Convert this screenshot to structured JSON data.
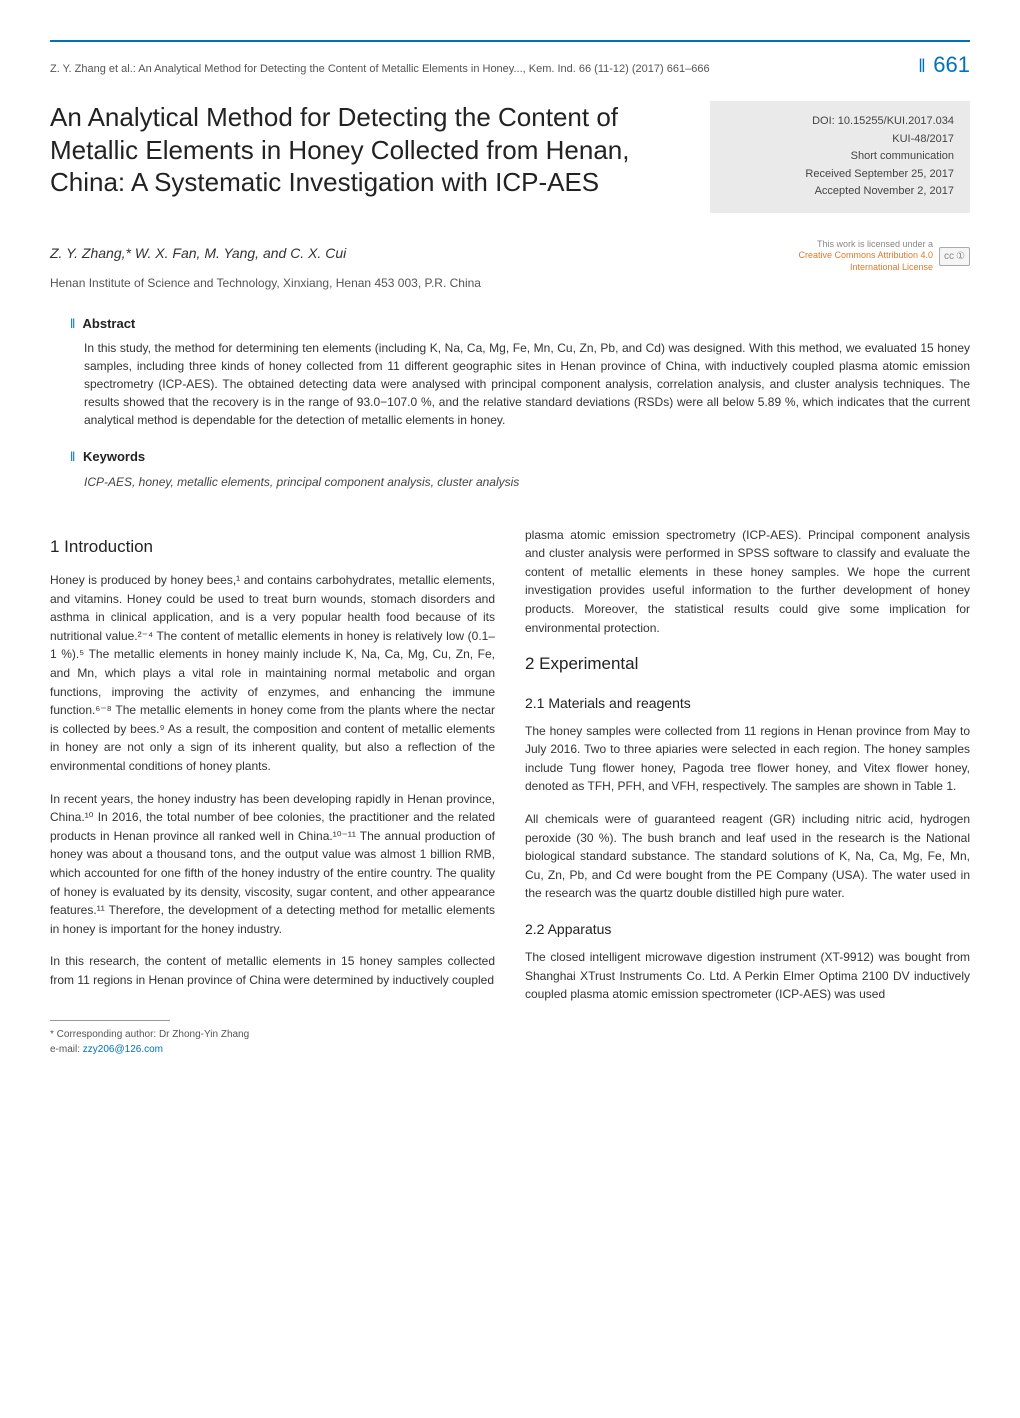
{
  "colors": {
    "accent": "#0072bc",
    "meta_bg": "#eaeaea",
    "text": "#333333",
    "muted": "#555555",
    "license_link": "#d97b2e"
  },
  "header": {
    "running": "Z. Y. Zhang et al.: An Analytical Method for Detecting the Content of Metallic Elements in Honey..., Kem. Ind. 66 (11-12) (2017) 661–666",
    "page_number": "661"
  },
  "title": "An Analytical Method for Detecting the Content of Metallic Elements in Honey Collected from Henan, China: A Systematic Investigation with ICP-AES",
  "metadata": {
    "doi": "DOI: 10.15255/KUI.2017.034",
    "kui": "KUI-48/2017",
    "type": "Short communication",
    "received": "Received September 25, 2017",
    "accepted": "Accepted November 2, 2017"
  },
  "authors_line": "Z. Y. Zhang,* W. X. Fan, M. Yang, and C. X. Cui",
  "license": {
    "text_line1": "This work is licensed under a",
    "text_line2": "Creative Commons Attribution 4.0",
    "text_line3": "International License",
    "badge_cc": "cc",
    "badge_by": "①"
  },
  "affiliation": "Henan Institute of Science and Technology, Xinxiang, Henan 453 003, P.R. China",
  "abstract": {
    "heading": "Abstract",
    "text": "In this study, the method for determining ten elements (including K, Na, Ca, Mg, Fe, Mn, Cu, Zn, Pb, and Cd) was designed. With this method, we evaluated 15 honey samples, including three kinds of honey collected from 11 different geographic sites in Henan province of China, with inductively coupled plasma atomic emission spectrometry (ICP-AES). The obtained detecting data were analysed with principal component analysis, correlation analysis, and cluster analysis techniques. The results showed that the recovery is in the range of 93.0−107.0 %, and the relative standard deviations (RSDs) were all below 5.89 %, which indicates that the current analytical method is dependable for the detection of metallic elements in honey."
  },
  "keywords": {
    "heading": "Keywords",
    "text": "ICP-AES, honey, metallic elements, principal component analysis, cluster analysis"
  },
  "sections": {
    "intro": {
      "heading": "1 Introduction",
      "p1": "Honey is produced by honey bees,¹ and contains carbohydrates, metallic elements, and vitamins. Honey could be used to treat burn wounds, stomach disorders and asthma in clinical application, and is a very popular health food because of its nutritional value.²⁻⁴ The content of metallic elements in honey is relatively low (0.1–1 %).⁵ The metallic elements in honey mainly include K, Na, Ca, Mg, Cu, Zn, Fe, and Mn, which plays a vital role in maintaining normal metabolic and organ functions, improving the activity of enzymes, and enhancing the immune function.⁶⁻⁸ The metallic elements in honey come from the plants where the nectar is collected by bees.⁹ As a result, the composition and content of metallic elements in honey are not only a sign of its inherent quality, but also a reflection of the environmental conditions of honey plants.",
      "p2": "In recent years, the honey industry has been developing rapidly in Henan province, China.¹⁰ In 2016, the total number of bee colonies, the practitioner and the related products in Henan province all ranked well in China.¹⁰⁻¹¹ The annual production of honey was about a thousand tons, and the output value was almost 1 billion RMB, which accounted for one fifth of the honey industry of the entire country. The quality of honey is evaluated by its density, viscosity, sugar content, and other appearance features.¹¹ Therefore, the development of a detecting method for metallic elements in honey is important for the honey industry.",
      "p3": "In this research, the content of metallic elements in 15 honey samples collected from 11 regions in Henan province of China were determined by inductively coupled",
      "p3_cont": "plasma atomic emission spectrometry (ICP-AES). Principal component analysis and cluster analysis were performed in SPSS software to classify and evaluate the content of metallic elements in these honey samples. We hope the current investigation provides useful information to the further development of honey products. Moreover, the statistical results could give some implication for environmental protection."
    },
    "experimental": {
      "heading": "2 Experimental",
      "sub1_heading": "2.1 Materials and reagents",
      "sub1_p1": "The honey samples were collected from 11 regions in Henan province from May to July 2016. Two to three apiaries were selected in each region. The honey samples include Tung flower honey, Pagoda tree flower honey, and Vitex flower honey, denoted as TFH, PFH, and VFH, respectively. The samples are shown in Table 1.",
      "sub1_p2": "All chemicals were of guaranteed reagent (GR) including nitric acid, hydrogen peroxide (30 %). The bush branch and leaf used in the research is the National biological standard substance. The standard solutions of K, Na, Ca, Mg, Fe, Mn, Cu, Zn, Pb, and Cd were bought from the PE Company (USA). The water used in the research was the quartz double distilled high pure water.",
      "sub2_heading": "2.2 Apparatus",
      "sub2_p1": "The closed intelligent microwave digestion instrument (XT-9912) was bought from Shanghai XTrust Instruments Co. Ltd. A Perkin Elmer Optima 2100 DV inductively coupled plasma atomic emission spectrometer (ICP-AES) was used"
    }
  },
  "footnote": {
    "line1": "* Corresponding author: Dr Zhong-Yin Zhang",
    "line2_label": "e-mail: ",
    "line2_email": "zzy206@126.com"
  }
}
